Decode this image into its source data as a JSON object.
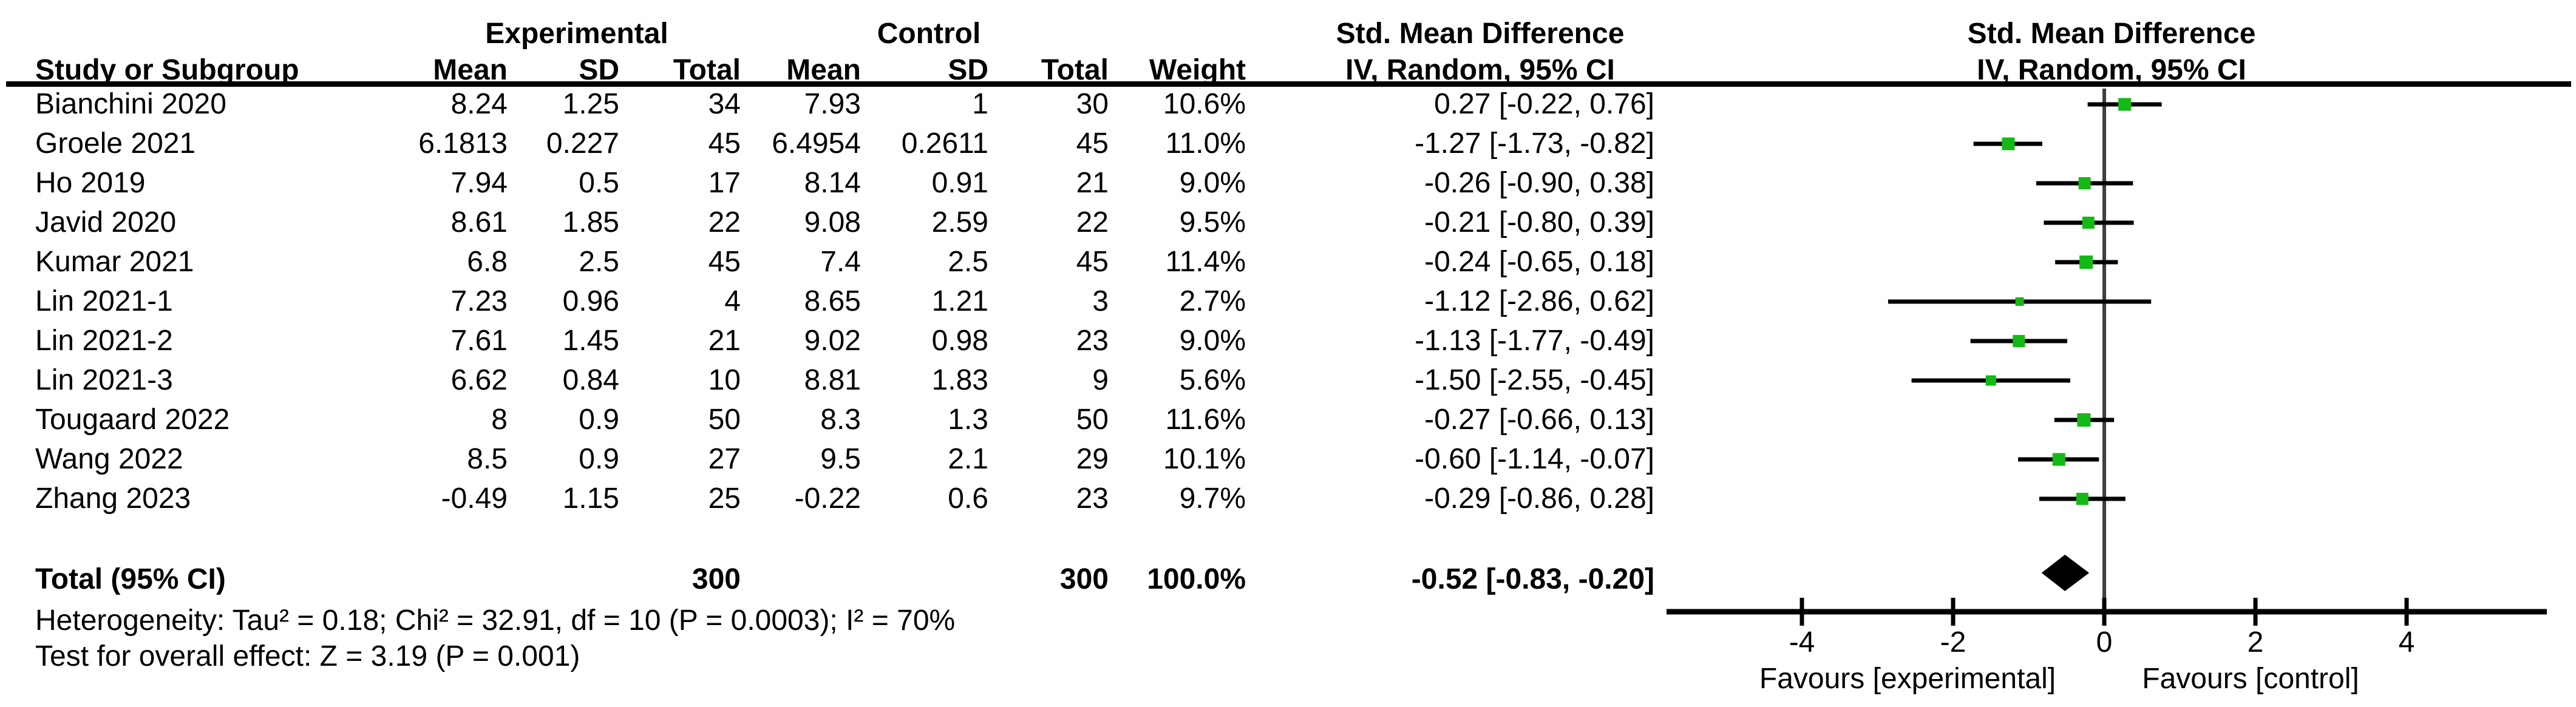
{
  "group_headers": {
    "experimental": "Experimental",
    "control": "Control",
    "smd_text_col": "Std. Mean Difference",
    "smd_plot_col": "Std. Mean Difference"
  },
  "column_headers": {
    "study": "Study or Subgroup",
    "exp_mean": "Mean",
    "exp_sd": "SD",
    "exp_total": "Total",
    "ctrl_mean": "Mean",
    "ctrl_sd": "SD",
    "ctrl_total": "Total",
    "weight": "Weight",
    "ci_text_col": "IV, Random, 95% CI",
    "ci_plot_col": "IV, Random, 95% CI"
  },
  "studies": [
    {
      "name": "Bianchini 2020",
      "exp_mean": "8.24",
      "exp_sd": "1.25",
      "exp_total": "34",
      "ctrl_mean": "7.93",
      "ctrl_sd": "1",
      "ctrl_total": "30",
      "weight": "10.6%",
      "ci": "0.27 [-0.22, 0.76]"
    },
    {
      "name": "Groele 2021",
      "exp_mean": "6.1813",
      "exp_sd": "0.227",
      "exp_total": "45",
      "ctrl_mean": "6.4954",
      "ctrl_sd": "0.2611",
      "ctrl_total": "45",
      "weight": "11.0%",
      "ci": "-1.27 [-1.73, -0.82]"
    },
    {
      "name": "Ho 2019",
      "exp_mean": "7.94",
      "exp_sd": "0.5",
      "exp_total": "17",
      "ctrl_mean": "8.14",
      "ctrl_sd": "0.91",
      "ctrl_total": "21",
      "weight": "9.0%",
      "ci": "-0.26 [-0.90, 0.38]"
    },
    {
      "name": "Javid 2020",
      "exp_mean": "8.61",
      "exp_sd": "1.85",
      "exp_total": "22",
      "ctrl_mean": "9.08",
      "ctrl_sd": "2.59",
      "ctrl_total": "22",
      "weight": "9.5%",
      "ci": "-0.21 [-0.80, 0.39]"
    },
    {
      "name": "Kumar 2021",
      "exp_mean": "6.8",
      "exp_sd": "2.5",
      "exp_total": "45",
      "ctrl_mean": "7.4",
      "ctrl_sd": "2.5",
      "ctrl_total": "45",
      "weight": "11.4%",
      "ci": "-0.24 [-0.65, 0.18]"
    },
    {
      "name": "Lin 2021-1",
      "exp_mean": "7.23",
      "exp_sd": "0.96",
      "exp_total": "4",
      "ctrl_mean": "8.65",
      "ctrl_sd": "1.21",
      "ctrl_total": "3",
      "weight": "2.7%",
      "ci": "-1.12 [-2.86, 0.62]"
    },
    {
      "name": "Lin 2021-2",
      "exp_mean": "7.61",
      "exp_sd": "1.45",
      "exp_total": "21",
      "ctrl_mean": "9.02",
      "ctrl_sd": "0.98",
      "ctrl_total": "23",
      "weight": "9.0%",
      "ci": "-1.13 [-1.77, -0.49]"
    },
    {
      "name": "Lin 2021-3",
      "exp_mean": "6.62",
      "exp_sd": "0.84",
      "exp_total": "10",
      "ctrl_mean": "8.81",
      "ctrl_sd": "1.83",
      "ctrl_total": "9",
      "weight": "5.6%",
      "ci": "-1.50 [-2.55, -0.45]"
    },
    {
      "name": "Tougaard 2022",
      "exp_mean": "8",
      "exp_sd": "0.9",
      "exp_total": "50",
      "ctrl_mean": "8.3",
      "ctrl_sd": "1.3",
      "ctrl_total": "50",
      "weight": "11.6%",
      "ci": "-0.27 [-0.66, 0.13]"
    },
    {
      "name": "Wang 2022",
      "exp_mean": "8.5",
      "exp_sd": "0.9",
      "exp_total": "27",
      "ctrl_mean": "9.5",
      "ctrl_sd": "2.1",
      "ctrl_total": "29",
      "weight": "10.1%",
      "ci": "-0.60 [-1.14, -0.07]"
    },
    {
      "name": "Zhang 2023",
      "exp_mean": "-0.49",
      "exp_sd": "1.15",
      "exp_total": "25",
      "ctrl_mean": "-0.22",
      "ctrl_sd": "0.6",
      "ctrl_total": "23",
      "weight": "9.7%",
      "ci": "-0.29 [-0.86, 0.28]"
    }
  ],
  "total_row": {
    "label": "Total (95% CI)",
    "exp_total": "300",
    "ctrl_total": "300",
    "weight": "100.0%",
    "ci": "-0.52 [-0.83, -0.20]"
  },
  "footnotes": {
    "heterogeneity": "Heterogeneity: Tau² = 0.18; Chi² = 32.91, df = 10 (P = 0.0003); I² = 70%",
    "overall_effect": "Test for overall effect: Z = 3.19 (P = 0.001)"
  },
  "axis": {
    "tick_labels": [
      "-4",
      "-2",
      "0",
      "2",
      "4"
    ],
    "favours_left": "Favours [experimental]",
    "favours_right": "Favours [control]"
  },
  "colors": {
    "square_green": "#15b915",
    "line_black": "#000000",
    "zero_line_gray": "#3f3f3f"
  },
  "chart_data": {
    "type": "scatter",
    "subtype": "forest",
    "title": "Std. Mean Difference",
    "effect_model": "IV, Random, 95% CI",
    "categories": [
      "Bianchini 2020",
      "Groele 2021",
      "Ho 2019",
      "Javid 2020",
      "Kumar 2021",
      "Lin 2021-1",
      "Lin 2021-2",
      "Lin 2021-3",
      "Tougaard 2022",
      "Wang 2022",
      "Zhang 2023"
    ],
    "estimates": [
      0.27,
      -1.27,
      -0.26,
      -0.21,
      -0.24,
      -1.12,
      -1.13,
      -1.5,
      -0.27,
      -0.6,
      -0.29
    ],
    "ci_low": [
      -0.22,
      -1.73,
      -0.9,
      -0.8,
      -0.65,
      -2.86,
      -1.77,
      -2.55,
      -0.66,
      -1.14,
      -0.86
    ],
    "ci_high": [
      0.76,
      -0.82,
      0.38,
      0.39,
      0.18,
      0.62,
      -0.49,
      -0.45,
      0.13,
      -0.07,
      0.28
    ],
    "weights_pct": [
      10.6,
      11.0,
      9.0,
      9.5,
      11.4,
      2.7,
      9.0,
      5.6,
      11.6,
      10.1,
      9.7
    ],
    "total": {
      "estimate": -0.52,
      "ci_low": -0.83,
      "ci_high": -0.2
    },
    "x_ticks": [
      -4,
      -2,
      0,
      2,
      4
    ],
    "xlim": [
      -5.8,
      5.9
    ],
    "xlabel_left": "Favours [experimental]",
    "xlabel_right": "Favours [control]"
  }
}
